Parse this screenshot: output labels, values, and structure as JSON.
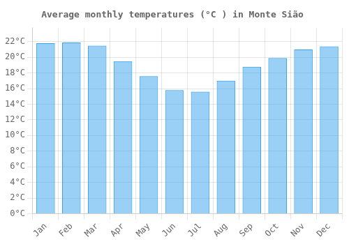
{
  "chart_data": {
    "type": "bar",
    "title": "Average monthly temperatures (°C ) in Monte Sião",
    "categories": [
      "Jan",
      "Feb",
      "Mar",
      "Apr",
      "May",
      "Jun",
      "Jul",
      "Aug",
      "Sep",
      "Oct",
      "Nov",
      "Dec"
    ],
    "values": [
      21.8,
      21.9,
      21.5,
      19.5,
      17.6,
      15.8,
      15.6,
      17.0,
      18.8,
      19.9,
      21.0,
      21.4
    ],
    "ylim": [
      0,
      23.8
    ],
    "yticks": [
      {
        "value": 0,
        "label": "0°C"
      },
      {
        "value": 2,
        "label": "2°C"
      },
      {
        "value": 4,
        "label": "4°C"
      },
      {
        "value": 6,
        "label": "6°C"
      },
      {
        "value": 8,
        "label": "8°C"
      },
      {
        "value": 10,
        "label": "10°C"
      },
      {
        "value": 12,
        "label": "12°C"
      },
      {
        "value": 14,
        "label": "14°C"
      },
      {
        "value": 16,
        "label": "16°C"
      },
      {
        "value": 18,
        "label": "18°C"
      },
      {
        "value": 20,
        "label": "20°C"
      },
      {
        "value": 22,
        "label": "22°C"
      }
    ],
    "grid": true
  }
}
